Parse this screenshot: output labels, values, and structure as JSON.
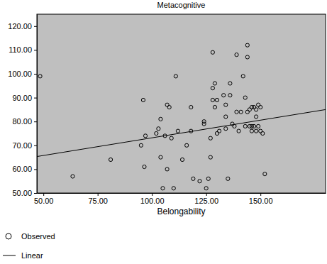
{
  "chart_data": {
    "type": "scatter",
    "title": "Metacognitive",
    "x_label": "Belongability",
    "xlim": [
      47,
      180
    ],
    "ylim": [
      50,
      125
    ],
    "xticks": [
      {
        "value": 50,
        "label": "50.00"
      },
      {
        "value": 75,
        "label": "75.00"
      },
      {
        "value": 100,
        "label": "100.00"
      },
      {
        "value": 125,
        "label": "125.00"
      },
      {
        "value": 150,
        "label": "150.00"
      }
    ],
    "yticks": [
      {
        "value": 50,
        "label": "50.00"
      },
      {
        "value": 60,
        "label": "60.00"
      },
      {
        "value": 70,
        "label": "70.00"
      },
      {
        "value": 80,
        "label": "80.00"
      },
      {
        "value": 90,
        "label": "90.00"
      },
      {
        "value": 100,
        "label": "100.00"
      },
      {
        "value": 110,
        "label": "110.00"
      },
      {
        "value": 120,
        "label": "120.00"
      }
    ],
    "series": [
      {
        "name": "Observed",
        "type": "scatter",
        "marker": "circle",
        "color": "#000000",
        "x": [
          48.5,
          63.5,
          81,
          95,
          96,
          96.5,
          97,
          102,
          103,
          104,
          104,
          105,
          106,
          107,
          107,
          108,
          109,
          110,
          111,
          112,
          114,
          116,
          118,
          118,
          119,
          122,
          124,
          124,
          125,
          126,
          127,
          127,
          128,
          128,
          128,
          129,
          129,
          130,
          130,
          131,
          133,
          134,
          134,
          134,
          135,
          136,
          136,
          137,
          138,
          139,
          139,
          140,
          141,
          142,
          143,
          143,
          144,
          144,
          144,
          145,
          145,
          146,
          146,
          147,
          147,
          148,
          148,
          149,
          149,
          150,
          150,
          151,
          152,
          146,
          148
        ],
        "values": [
          99,
          57,
          64,
          70,
          89,
          61,
          74,
          75,
          77,
          81,
          65,
          52,
          74,
          60,
          87,
          86,
          73,
          52,
          99,
          76,
          64,
          70,
          86,
          76,
          56,
          55,
          80,
          79,
          52,
          56,
          65,
          73,
          109,
          89,
          94,
          96,
          86,
          89,
          75,
          76,
          91,
          87,
          82,
          77,
          56,
          96,
          91,
          79,
          78,
          84,
          108,
          76,
          84,
          99,
          90,
          78,
          112,
          107,
          84,
          85,
          78,
          76,
          86,
          78,
          86,
          82,
          85,
          78,
          87,
          76,
          86,
          75,
          58,
          78,
          76
        ]
      },
      {
        "name": "Linear",
        "type": "line",
        "line_style": "solid",
        "color": "#000000",
        "x": [
          47,
          180
        ],
        "values": [
          65.3,
          85.0
        ]
      }
    ]
  }
}
